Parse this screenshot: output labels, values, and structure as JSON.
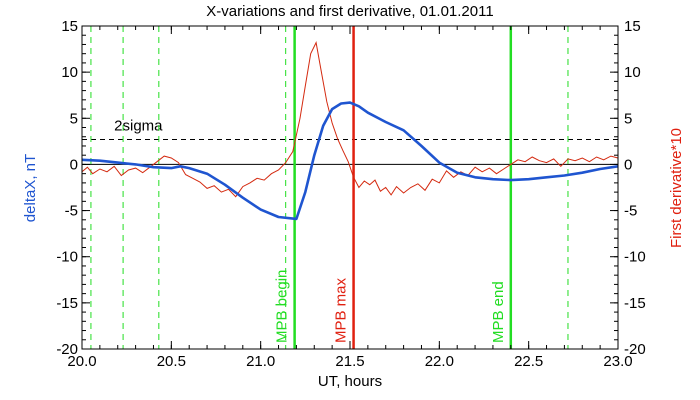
{
  "chart_data": {
    "type": "line",
    "title": "X-variations and first derivative, 01.01.2011",
    "xlabel": "UT, hours",
    "ylabel_left": "deltaX, nT",
    "ylabel_right": "First derivative*10",
    "xlim": [
      20.0,
      23.0
    ],
    "ylim": [
      -20,
      15
    ],
    "y2lim": [
      -20,
      15
    ],
    "x_ticks": [
      "20.0",
      "20.5",
      "21.0",
      "21.5",
      "22.0",
      "22.5",
      "23.0"
    ],
    "y_ticks": [
      "-20",
      "-15",
      "-10",
      "-5",
      "0",
      "5",
      "10",
      "15"
    ],
    "y2_ticks": [
      "-20",
      "-15",
      "-10",
      "-5",
      "0",
      "5",
      "10",
      "15"
    ],
    "grid": false,
    "colors": {
      "deltaX": "#1f55d0",
      "derivative": "#d42a10",
      "mpb_lines": "#22dd22",
      "mpb_max": "#e02010",
      "left_axis_label": "#1f55d0",
      "right_axis_label": "#e02010",
      "threshold": "#000000"
    },
    "series": [
      {
        "axis": "left",
        "x": [
          20.0,
          20.1,
          20.2,
          20.3,
          20.4,
          20.5,
          20.55,
          20.6,
          20.7,
          20.8,
          20.9,
          21.0,
          21.1,
          21.2,
          21.25,
          21.3,
          21.35,
          21.4,
          21.45,
          21.5,
          21.55,
          21.6,
          21.7,
          21.8,
          21.9,
          22.0,
          22.1,
          22.2,
          22.3,
          22.4,
          22.5,
          22.6,
          22.7,
          22.8,
          22.9,
          23.0
        ],
        "values": [
          0.5,
          0.4,
          0.2,
          0.0,
          -0.3,
          -0.4,
          -0.2,
          -0.4,
          -1.0,
          -2.2,
          -3.6,
          -4.9,
          -5.7,
          -5.9,
          -3.0,
          1.0,
          4.2,
          6.0,
          6.6,
          6.7,
          6.3,
          5.6,
          4.6,
          3.7,
          2.0,
          0.2,
          -0.9,
          -1.4,
          -1.6,
          -1.7,
          -1.6,
          -1.4,
          -1.2,
          -0.9,
          -0.5,
          -0.2
        ]
      },
      {
        "axis": "right",
        "x": [
          20.0,
          20.03,
          20.06,
          20.1,
          20.14,
          20.18,
          20.22,
          20.26,
          20.3,
          20.34,
          20.38,
          20.42,
          20.46,
          20.5,
          20.54,
          20.58,
          20.62,
          20.66,
          20.7,
          20.74,
          20.78,
          20.82,
          20.86,
          20.9,
          20.94,
          20.98,
          21.02,
          21.06,
          21.1,
          21.14,
          21.18,
          21.22,
          21.25,
          21.28,
          21.31,
          21.34,
          21.37,
          21.4,
          21.43,
          21.46,
          21.49,
          21.52,
          21.55,
          21.58,
          21.61,
          21.64,
          21.67,
          21.7,
          21.73,
          21.76,
          21.8,
          21.84,
          21.88,
          21.92,
          21.96,
          22.0,
          22.04,
          22.08,
          22.12,
          22.16,
          22.2,
          22.24,
          22.28,
          22.32,
          22.36,
          22.4,
          22.44,
          22.48,
          22.52,
          22.56,
          22.6,
          22.64,
          22.68,
          22.72,
          22.76,
          22.8,
          22.84,
          22.88,
          22.92,
          22.96,
          23.0
        ],
        "values": [
          -0.8,
          -0.3,
          -1.0,
          -0.5,
          -0.8,
          -0.2,
          -1.2,
          -0.6,
          -0.4,
          -0.9,
          -0.3,
          0.3,
          0.9,
          0.7,
          0.2,
          -1.1,
          -1.5,
          -1.9,
          -2.6,
          -2.3,
          -3.0,
          -2.7,
          -3.5,
          -2.4,
          -2.0,
          -1.5,
          -1.7,
          -1.0,
          -0.6,
          0.2,
          1.4,
          5.0,
          8.5,
          12.0,
          13.2,
          10.0,
          6.8,
          4.5,
          2.8,
          1.5,
          0.3,
          -1.4,
          -2.5,
          -1.8,
          -2.2,
          -1.7,
          -2.9,
          -2.5,
          -3.3,
          -2.4,
          -3.1,
          -2.5,
          -2.1,
          -2.8,
          -1.6,
          -2.0,
          -0.7,
          -1.4,
          -0.8,
          -1.2,
          -0.3,
          -0.8,
          -0.4,
          -1.0,
          -0.5,
          0.0,
          0.5,
          0.3,
          0.8,
          0.4,
          0.2,
          0.6,
          -0.2,
          0.6,
          0.4,
          0.7,
          0.3,
          0.8,
          0.5,
          0.9,
          0.7
        ]
      }
    ],
    "threshold": {
      "label": "2sigma",
      "y": 2.7
    },
    "vertical_lines": [
      {
        "x": 20.05,
        "style": "dashed",
        "color_key": "mpb_lines"
      },
      {
        "x": 20.23,
        "style": "dashed",
        "color_key": "mpb_lines"
      },
      {
        "x": 20.43,
        "style": "dashed",
        "color_key": "mpb_lines"
      },
      {
        "x": 21.14,
        "style": "dashed",
        "color_key": "mpb_lines"
      },
      {
        "x": 21.19,
        "style": "solid",
        "color_key": "mpb_lines",
        "label": "MPB begin"
      },
      {
        "x": 21.52,
        "style": "solid",
        "color_key": "mpb_max",
        "label": "MPB max"
      },
      {
        "x": 22.4,
        "style": "solid",
        "color_key": "mpb_lines",
        "label": "MPB end"
      },
      {
        "x": 22.72,
        "style": "dashed",
        "color_key": "mpb_lines"
      }
    ]
  }
}
